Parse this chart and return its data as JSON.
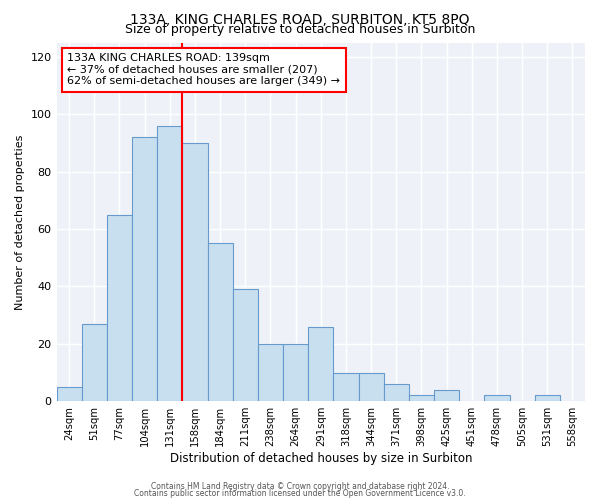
{
  "title": "133A, KING CHARLES ROAD, SURBITON, KT5 8PQ",
  "subtitle": "Size of property relative to detached houses in Surbiton",
  "xlabel": "Distribution of detached houses by size in Surbiton",
  "ylabel": "Number of detached properties",
  "categories": [
    "24sqm",
    "51sqm",
    "77sqm",
    "104sqm",
    "131sqm",
    "158sqm",
    "184sqm",
    "211sqm",
    "238sqm",
    "264sqm",
    "291sqm",
    "318sqm",
    "344sqm",
    "371sqm",
    "398sqm",
    "425sqm",
    "451sqm",
    "478sqm",
    "505sqm",
    "531sqm",
    "558sqm"
  ],
  "values": [
    5,
    27,
    65,
    92,
    96,
    90,
    55,
    39,
    20,
    20,
    26,
    10,
    10,
    6,
    2,
    4,
    0,
    2,
    0,
    2,
    0
  ],
  "bar_color": "#c8dff0",
  "bar_edge_color": "#6699cc",
  "vline_x_index": 4,
  "vline_color": "red",
  "annotation_line1": "133A KING CHARLES ROAD: 139sqm",
  "annotation_line2": "← 37% of detached houses are smaller (207)",
  "annotation_line3": "62% of semi-detached houses are larger (349) →",
  "annotation_box_color": "white",
  "annotation_box_edge": "red",
  "ylim": [
    0,
    125
  ],
  "yticks": [
    0,
    20,
    40,
    60,
    80,
    100,
    120
  ],
  "footer1": "Contains HM Land Registry data © Crown copyright and database right 2024.",
  "footer2": "Contains public sector information licensed under the Open Government Licence v3.0.",
  "bg_color": "#eef2f8",
  "fig_bg_color": "#ffffff",
  "grid_color": "#ffffff"
}
